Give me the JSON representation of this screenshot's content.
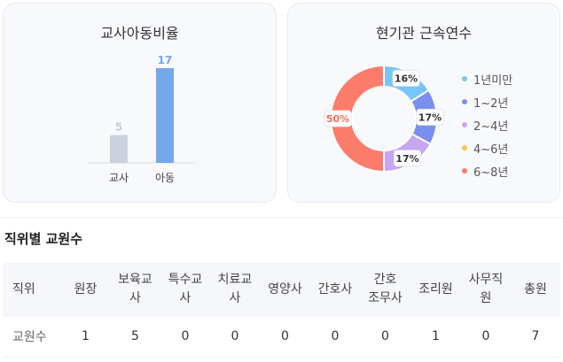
{
  "ratio_card": {
    "title": "교사아동비율",
    "chart_data": {
      "type": "bar",
      "categories": [
        "교사",
        "아동"
      ],
      "values": [
        5,
        17
      ],
      "colors": [
        "#cdd1df",
        "#75a7ea"
      ],
      "label_colors": [
        "#c9ccd6",
        "#75a7ea"
      ],
      "ylim": [
        0,
        17
      ]
    }
  },
  "tenure_card": {
    "title": "현기관 근속연수",
    "chart_data": {
      "type": "pie",
      "donut": true,
      "slices": [
        {
          "name": "1년미만",
          "value": 16,
          "label": "16%",
          "color": "#78c5f7"
        },
        {
          "name": "1~2년",
          "value": 17,
          "label": "17%",
          "color": "#7b8ff0"
        },
        {
          "name": "2~4년",
          "value": 17,
          "label": "17%",
          "color": "#c7a6f2"
        },
        {
          "name": "4~6년",
          "value": 0,
          "label": "",
          "color": "#f7c744"
        },
        {
          "name": "6~8년",
          "value": 50,
          "label": "50%",
          "color": "#fb7c6a"
        }
      ]
    }
  },
  "staff_section": {
    "title": "직위별 교원수",
    "headers": [
      "직위",
      "원장",
      "보육교\n사",
      "특수교\n사",
      "치료교\n사",
      "영양사",
      "간호사",
      "간호\n조무사",
      "조리원",
      "사무직\n원",
      "총원"
    ],
    "row": [
      "교원수",
      "1",
      "5",
      "0",
      "0",
      "0",
      "0",
      "0",
      "1",
      "0",
      "7"
    ]
  }
}
